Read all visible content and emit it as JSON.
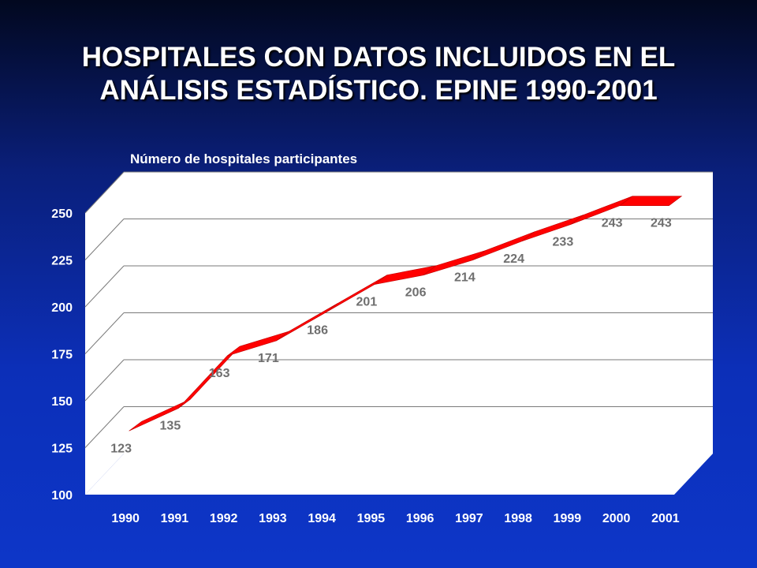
{
  "slide": {
    "title_line1": "HOSPITALES CON DATOS INCLUIDOS EN EL",
    "title_line2": "ANÁLISIS ESTADÍSTICO. EPINE 1990-2001"
  },
  "chart_data": {
    "type": "line",
    "title": "Número de hospitales participantes",
    "categories": [
      "1990",
      "1991",
      "1992",
      "1993",
      "1994",
      "1995",
      "1996",
      "1997",
      "1998",
      "1999",
      "2000",
      "2001"
    ],
    "values": [
      123,
      135,
      163,
      171,
      186,
      201,
      206,
      214,
      224,
      233,
      243,
      243
    ],
    "data_labels": [
      "123",
      "135",
      "163",
      "171",
      "186",
      "201",
      "206",
      "214",
      "224",
      "233",
      "243",
      "243"
    ],
    "ylim": [
      100,
      250
    ],
    "yticks": [
      "100",
      "125",
      "150",
      "175",
      "200",
      "225",
      "250"
    ],
    "xlabel": "",
    "ylabel": "",
    "grid": true,
    "style": "3d-ribbon",
    "colors": {
      "ribbon": "#ff0000",
      "ribbon_edge": "#c00000",
      "plot_wall": "#ffffff",
      "grid": "#7a7a7a",
      "data_label": "#6f6f6f"
    }
  }
}
